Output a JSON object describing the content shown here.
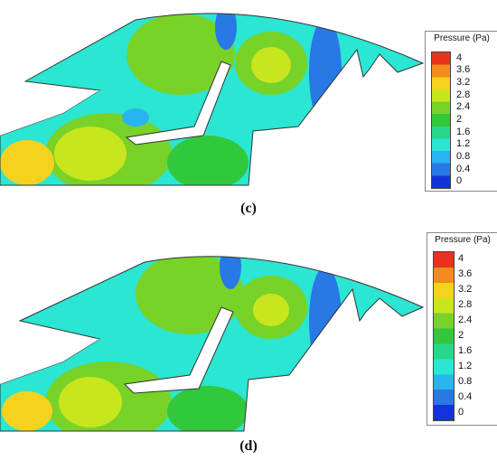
{
  "legend": {
    "title": "Pressure (Pa)",
    "ticks": [
      "4",
      "3.6",
      "3.2",
      "2.8",
      "2.4",
      "2",
      "1.6",
      "1.2",
      "0.8",
      "0.4",
      "0"
    ],
    "colors": [
      "#e8321e",
      "#f28c1c",
      "#f5d21e",
      "#c8e61e",
      "#78d228",
      "#32c83c",
      "#28d78c",
      "#2ae6d2",
      "#28b4f0",
      "#2878e6",
      "#1432dc"
    ]
  },
  "panels": [
    {
      "caption": "(c)"
    },
    {
      "caption": "(d)"
    }
  ]
}
